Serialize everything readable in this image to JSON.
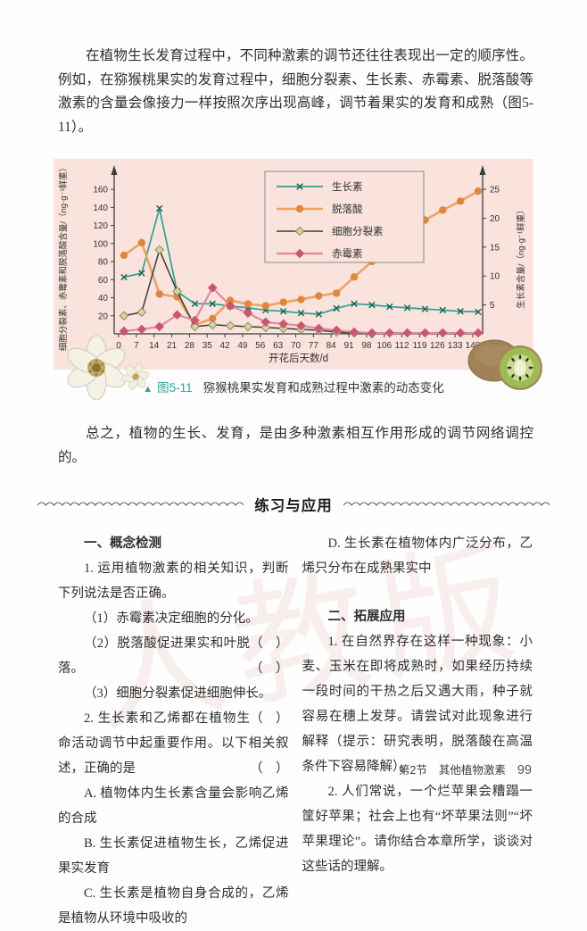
{
  "page": {
    "para1": "在植物生长发育过程中，不同种激素的调节还往往表现出一定的顺序性。例如，在猕猴桃果实的发育过程中，细胞分裂素、生长素、赤霉素、脱落酸等激素的含量会像接力一样按照次序出现高峰，调节着果实的发育和成熟（图5-11）。",
    "para2": "总之，植物的生长、发育，是由多种激素相互作用形成的调节网络调控的。",
    "footer": {
      "section": "第2节",
      "chapter": "其他植物激素",
      "page_number": "99"
    }
  },
  "figure": {
    "caption_marker": "▲",
    "caption_label": "图5-11",
    "caption_text": "猕猴桃果实发育和成熟过程中激素的动态变化"
  },
  "chart_data": {
    "type": "line",
    "xlabel": "开花后天数/d",
    "ylabel_left": "细胞分裂素、赤霉素和脱落酸含量/（ng·g⁻¹鲜重）",
    "ylabel_right": "生长素含量/（ng·g⁻¹鲜重）",
    "x_ticks": [
      0,
      7,
      14,
      21,
      28,
      35,
      42,
      49,
      56,
      63,
      70,
      77,
      84,
      91,
      98,
      106,
      112,
      119,
      126,
      133,
      140
    ],
    "ylim_left": [
      0,
      170
    ],
    "yticks_left": [
      20,
      40,
      60,
      80,
      100,
      120,
      140,
      160
    ],
    "ylim_right": [
      0,
      26.56
    ],
    "yticks_right": [
      5,
      10,
      15,
      20,
      25
    ],
    "grid": false,
    "legend_position": "top-center",
    "panel_color": "#f9e3dc",
    "axis_color": "#3d3d3d",
    "series": [
      {
        "id": "auxin",
        "name": "生长素",
        "axis": "right",
        "color": "#2fa092",
        "marker": "x",
        "marker_color": "#155f56",
        "width": 1.7,
        "values": [
          9.8,
          10.5,
          21.7,
          7.3,
          5.2,
          5.2,
          4.8,
          4.5,
          4.1,
          3.9,
          3.6,
          3.4,
          4.4,
          5.2,
          5.0,
          4.7,
          4.5,
          4.3,
          4.1,
          3.9,
          3.8
        ]
      },
      {
        "id": "abscisic-acid",
        "name": "脱落酸",
        "axis": "left",
        "color": "#eda266",
        "marker": "circle",
        "marker_color": "#e0873e",
        "width": 2.6,
        "values": [
          87,
          101,
          44,
          41,
          10,
          17,
          37,
          33,
          31,
          35,
          38,
          42,
          45,
          63,
          80,
          86,
          104,
          126,
          137,
          147,
          158
        ]
      },
      {
        "id": "cytokinin",
        "name": "细胞分裂素",
        "axis": "left",
        "color": "#3a3a3a",
        "marker": "diamond",
        "marker_fill": "#d6d5a3",
        "marker_color": "#8b8a60",
        "width": 1.5,
        "values": [
          20,
          24,
          93,
          47,
          8,
          10,
          9,
          8,
          7,
          6,
          5,
          4,
          2,
          1,
          0
        ]
      },
      {
        "id": "gibberellin",
        "name": "赤霉素",
        "axis": "left",
        "color": "#e08ba0",
        "marker": "diamond",
        "marker_fill": "#cc5574",
        "marker_color": "#cc5574",
        "width": 2.2,
        "values": [
          3,
          5,
          8,
          21,
          15,
          51,
          31,
          23,
          13,
          11,
          9,
          6,
          4,
          2,
          1,
          1,
          1,
          1,
          1,
          1,
          1
        ]
      }
    ]
  },
  "exercises": {
    "title": "练习与应用",
    "watermark": "人教版",
    "left_blocks": [
      {
        "style": "heading",
        "text": "一、概念检测"
      },
      {
        "style": "item",
        "text": "1. 运用植物激素的相关知识，判断下列说法是否正确。"
      },
      {
        "style": "item",
        "text": "（1）赤霉素决定细胞的分化。",
        "bracket": "（　）"
      },
      {
        "style": "item",
        "text": "（2）脱落酸促进果实和叶脱落。",
        "bracket": "（　）"
      },
      {
        "style": "item",
        "text": "（3）细胞分裂素促进细胞伸长。",
        "bracket": "（　）"
      },
      {
        "style": "item",
        "text": "2. 生长素和乙烯都在植物生命活动调节中起重要作用。以下相关叙述，正确的是",
        "bracket": "（　）"
      },
      {
        "style": "item",
        "text": "A. 植物体内生长素含量会影响乙烯的合成"
      },
      {
        "style": "item",
        "text": "B. 生长素促进植物生长，乙烯促进果实发育"
      },
      {
        "style": "item",
        "text": "C. 生长素是植物自身合成的，乙烯是植物从环境中吸收的"
      }
    ],
    "right_blocks": [
      {
        "style": "item",
        "text": "D. 生长素在植物体内广泛分布，乙烯只分布在成熟果实中"
      },
      {
        "style": "spacer",
        "text": ""
      },
      {
        "style": "heading",
        "text": "二、拓展应用"
      },
      {
        "style": "item",
        "text": "1. 在自然界存在这样一种现象：小麦、玉米在即将成熟时，如果经历持续一段时间的干热之后又遇大雨，种子就容易在穗上发芽。请尝试对此现象进行解释（提示：研究表明，脱落酸在高温条件下容易降解）。"
      },
      {
        "style": "item",
        "text": "2. 人们常说，一个烂苹果会糟蹋一筐好苹果；社会上也有“坏苹果法则”“坏苹果理论”。请你结合本章所学，谈谈对这些话的理解。"
      }
    ]
  }
}
